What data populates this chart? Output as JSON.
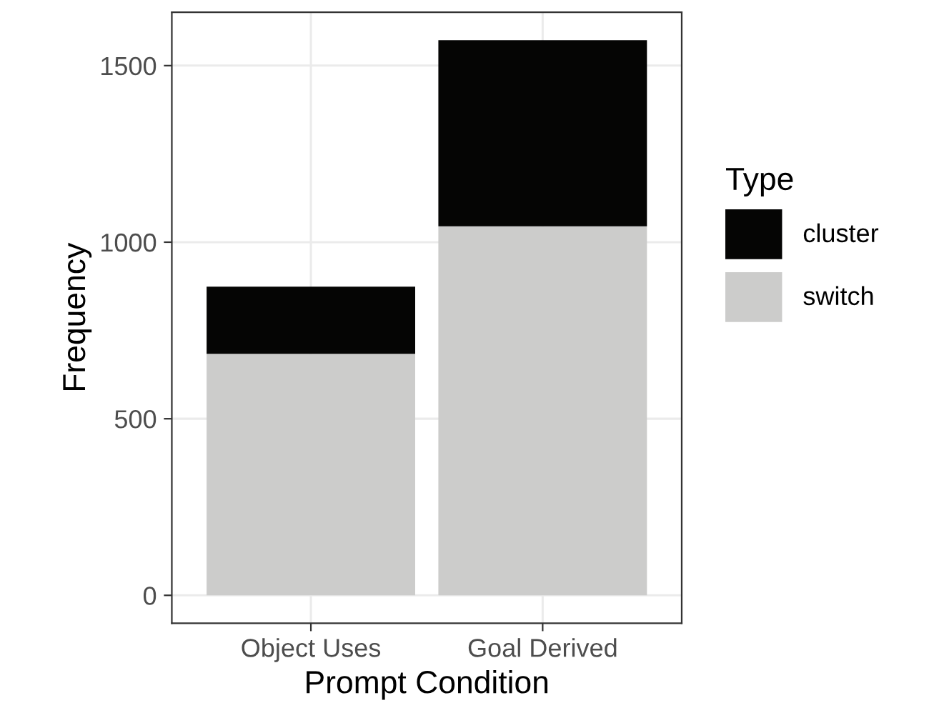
{
  "chart_data": {
    "type": "bar",
    "stacked": true,
    "xlabel": "Prompt Condition",
    "ylabel": "Frequency",
    "legend_title": "Type",
    "categories": [
      "Object Uses",
      "Goal Derived"
    ],
    "series": [
      {
        "name": "switch",
        "color": "#cccccb",
        "values": [
          684,
          1045
        ]
      },
      {
        "name": "cluster",
        "color": "#050504",
        "values": [
          190,
          527
        ]
      }
    ],
    "ylim": [
      -79,
      1651
    ],
    "yticks": [
      0,
      500,
      1000,
      1500
    ],
    "grid": true,
    "legend": "right"
  }
}
